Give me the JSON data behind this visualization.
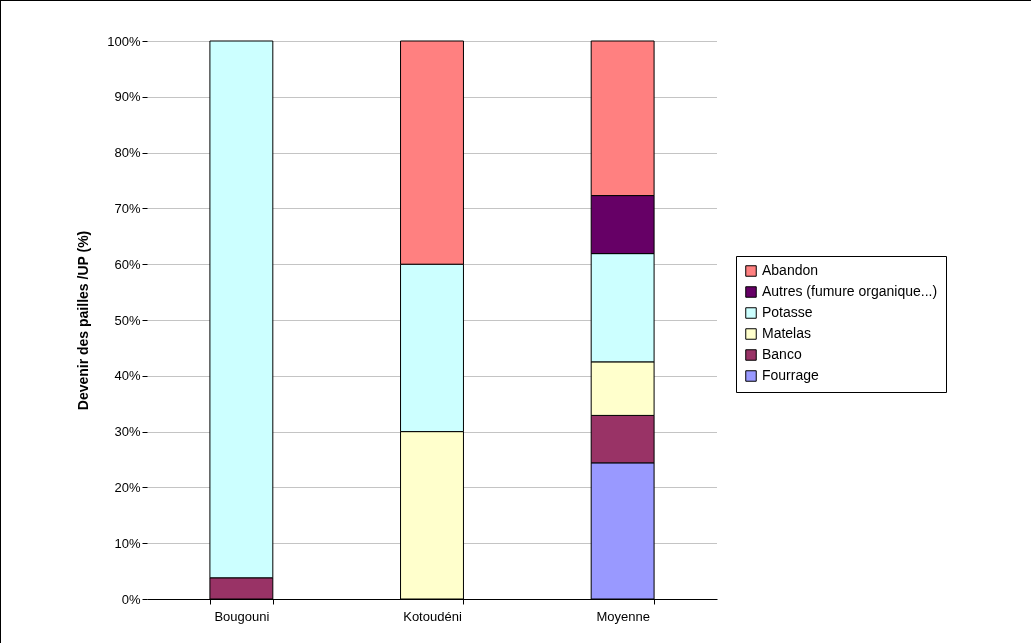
{
  "chart_data": {
    "type": "bar",
    "stacked": true,
    "ylabel": "Devenir des pailles /UP (%)",
    "categories": [
      "Bougouni",
      "Kotoudéni",
      "Moyenne"
    ],
    "series": [
      {
        "name": "Fourrage",
        "color": "#9999ff",
        "values": [
          null,
          null,
          24.4
        ]
      },
      {
        "name": "Banco",
        "color": "#993366",
        "values": [
          3.8,
          null,
          8.5
        ]
      },
      {
        "name": "Matelas",
        "color": "#ffffcc",
        "values": [
          null,
          30,
          9.6
        ]
      },
      {
        "name": "Potasse",
        "color": "#ccffff",
        "values": [
          96.2,
          30,
          19.4
        ]
      },
      {
        "name": "Autres (fumure organique...)",
        "color": "#660066",
        "values": [
          null,
          null,
          10.4
        ]
      },
      {
        "name": "Abandon",
        "color": "#ff8080",
        "values": [
          null,
          40,
          27.7
        ]
      }
    ],
    "ylim": [
      0,
      100
    ],
    "yticks": [
      {
        "value": 0,
        "label": "0%"
      },
      {
        "value": 10,
        "label": "10%"
      },
      {
        "value": 20,
        "label": "20%"
      },
      {
        "value": 30,
        "label": "30%"
      },
      {
        "value": 40,
        "label": "40%"
      },
      {
        "value": 50,
        "label": "50%"
      },
      {
        "value": 60,
        "label": "60%"
      },
      {
        "value": 70,
        "label": "70%"
      },
      {
        "value": 80,
        "label": "80%"
      },
      {
        "value": 90,
        "label": "90%"
      },
      {
        "value": 100,
        "label": "100%"
      }
    ],
    "grid": "y",
    "legend": "right"
  }
}
